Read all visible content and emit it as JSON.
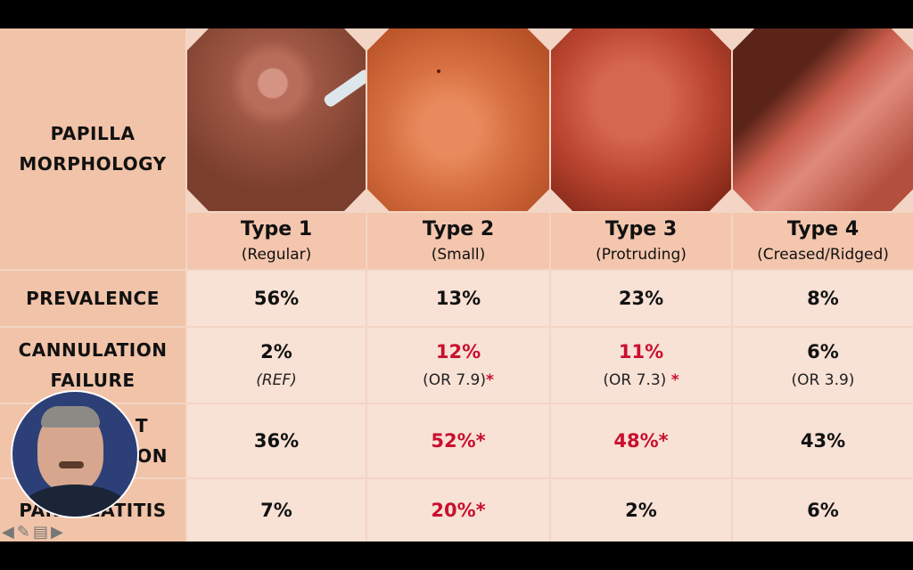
{
  "row_labels": {
    "morphology": [
      "PAPILLA",
      "MORPHOLOGY"
    ],
    "prevalence": "PREVALENCE",
    "cannulation": [
      "CANNULATION",
      "FAILURE"
    ],
    "third": [
      "T",
      "ON"
    ],
    "pancreatitis": "PANCREATITIS"
  },
  "types": [
    {
      "title": "Type 1",
      "subtitle": "(Regular)"
    },
    {
      "title": "Type 2",
      "subtitle": "(Small)"
    },
    {
      "title": "Type 3",
      "subtitle": "(Protruding)"
    },
    {
      "title": "Type 4",
      "subtitle": "(Creased/Ridged)"
    }
  ],
  "prevalence": [
    "56%",
    "13%",
    "23%",
    "8%"
  ],
  "cannulation": [
    {
      "value": "2%",
      "note": "(REF)",
      "star": ""
    },
    {
      "value": "12%",
      "note": "(OR 7.9)",
      "star": "*"
    },
    {
      "value": "11%",
      "note": "(OR 7.3)",
      "star": "*"
    },
    {
      "value": "6%",
      "note": "(OR 3.9)",
      "star": ""
    }
  ],
  "third_row": [
    "36%",
    "52%*",
    "48%*",
    "43%"
  ],
  "pancreatitis": [
    "7%",
    "20%*",
    "2%",
    "6%"
  ],
  "colors": {
    "highlight": "#c8102e",
    "label_bg": "#f1c3a8",
    "cell_bg": "#f8e1d5"
  },
  "nav_icons": [
    "back-arrow-icon",
    "pen-icon",
    "menu-icon",
    "forward-arrow-icon"
  ]
}
